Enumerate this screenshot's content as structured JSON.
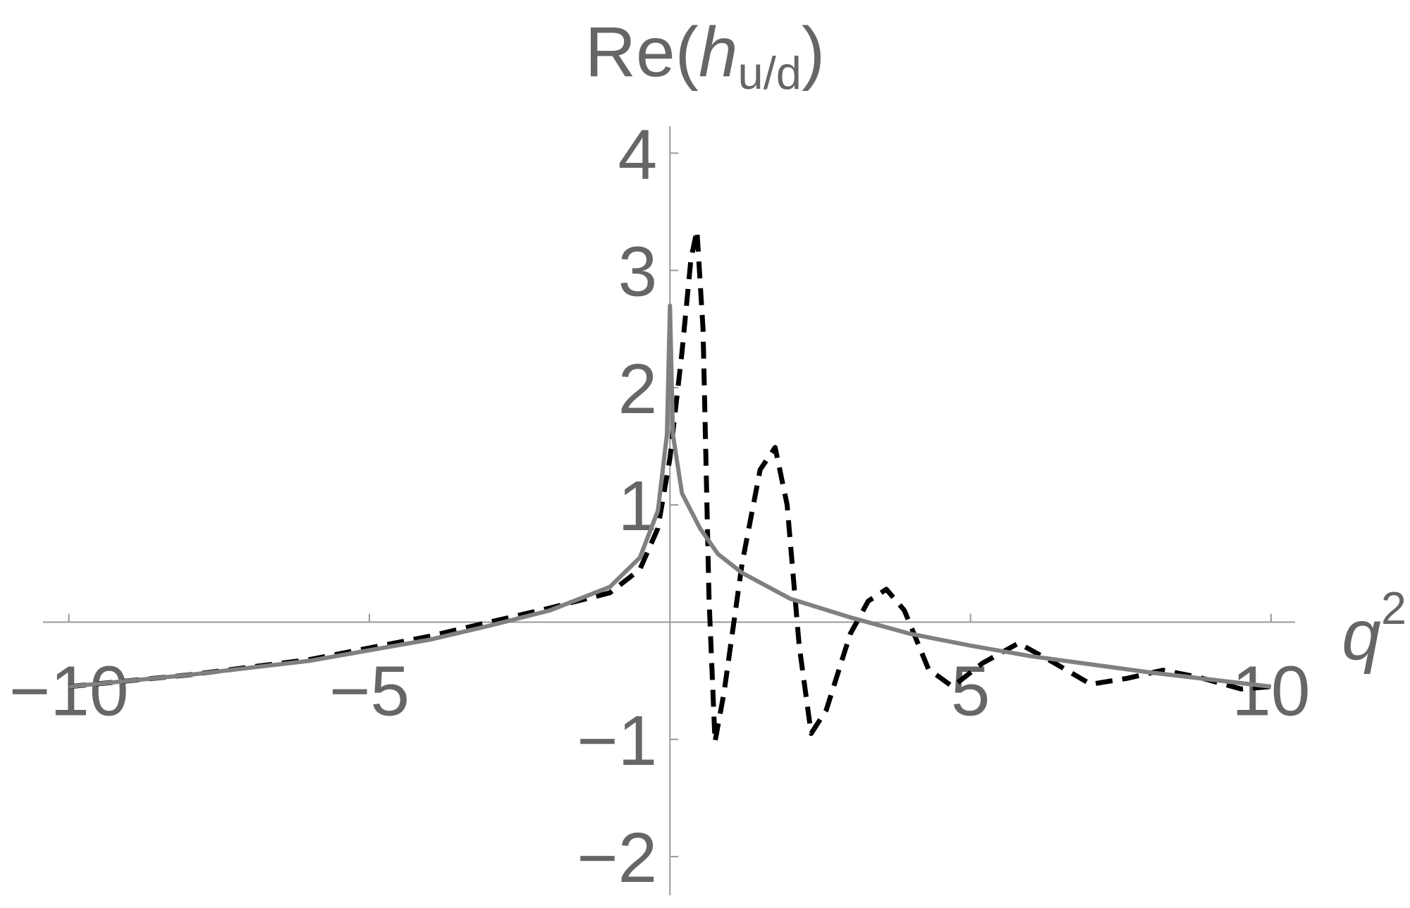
{
  "chart_data": {
    "type": "line",
    "ylabel": [
      "Re(",
      "h",
      "u/d",
      ")"
    ],
    "xlabel": [
      "q",
      "2"
    ],
    "xlim": [
      -10.43,
      10.4
    ],
    "ylim": [
      -2.33,
      4.23
    ],
    "xticks": [
      {
        "value": -10,
        "label": "−10"
      },
      {
        "value": -5,
        "label": "−5"
      },
      5,
      10
    ],
    "yticks": [
      {
        "value": -2,
        "label": "−2"
      },
      {
        "value": -1,
        "label": "−1"
      },
      1,
      2,
      3,
      4
    ],
    "series": [
      {
        "color": "#000000",
        "dashed": true,
        "x": [
          -10,
          -8,
          -6,
          -4,
          -3,
          -2,
          -1,
          -0.5,
          -0.2,
          0,
          0.2,
          0.35,
          0.45,
          0.55,
          0.65,
          0.75,
          0.9,
          1.2,
          1.5,
          1.75,
          1.95,
          2.15,
          2.35,
          2.6,
          3,
          3.3,
          3.6,
          3.9,
          4.3,
          4.7,
          5.2,
          5.8,
          6.4,
          7,
          7.6,
          8.2,
          8.8,
          9.5,
          10
        ],
        "values": [
          -0.55,
          -0.45,
          -0.32,
          -0.12,
          0,
          0.12,
          0.25,
          0.45,
          0.8,
          1.4,
          2.3,
          3.1,
          3.34,
          2.5,
          0.2,
          -1.02,
          -0.6,
          0.5,
          1.3,
          1.49,
          1.0,
          -0.2,
          -0.95,
          -0.75,
          -0.1,
          0.18,
          0.28,
          0.1,
          -0.4,
          -0.55,
          -0.35,
          -0.18,
          -0.35,
          -0.53,
          -0.48,
          -0.41,
          -0.47,
          -0.57,
          -0.55
        ]
      },
      {
        "color": "#808080",
        "dashed": false,
        "x": [
          -10,
          -8,
          -6,
          -4,
          -3,
          -2,
          -1,
          -0.5,
          -0.2,
          -0.05,
          0,
          0.05,
          0.2,
          0.5,
          0.8,
          1.2,
          2,
          3,
          4,
          5,
          6,
          7,
          8,
          9,
          10
        ],
        "values": [
          -0.55,
          -0.45,
          -0.33,
          -0.15,
          -0.03,
          0.1,
          0.3,
          0.55,
          0.95,
          1.6,
          2.7,
          1.6,
          1.1,
          0.8,
          0.58,
          0.42,
          0.2,
          0.04,
          -0.1,
          -0.2,
          -0.29,
          -0.36,
          -0.43,
          -0.49,
          -0.55
        ]
      }
    ]
  }
}
